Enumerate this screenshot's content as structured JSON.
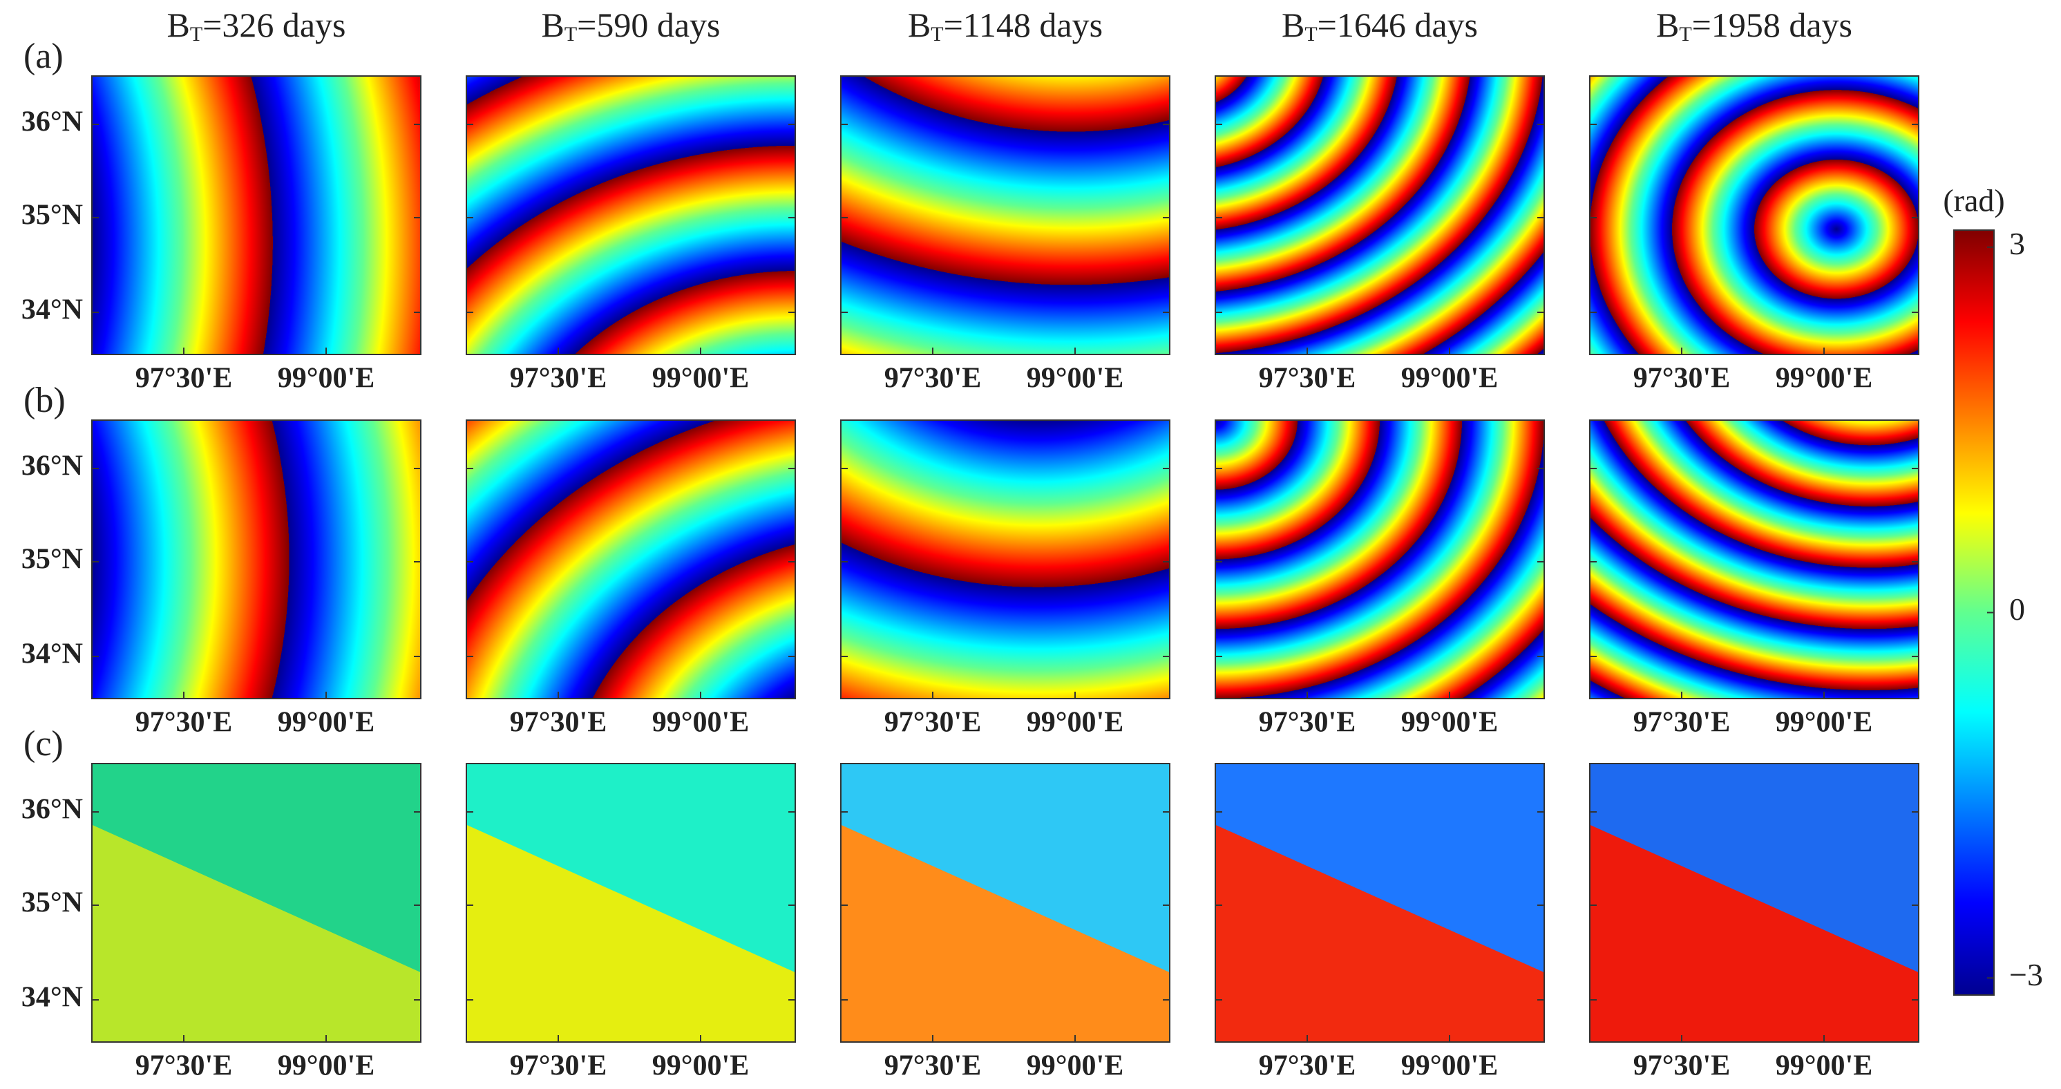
{
  "figure": {
    "columns": [
      {
        "symbol": "B",
        "subscript": "T",
        "text": "=326 days"
      },
      {
        "symbol": "B",
        "subscript": "T",
        "text": "=590 days"
      },
      {
        "symbol": "B",
        "subscript": "T",
        "text": "=1148 days"
      },
      {
        "symbol": "B",
        "subscript": "T",
        "text": "=1646 days"
      },
      {
        "symbol": "B",
        "subscript": "T",
        "text": "=1958 days"
      }
    ],
    "rows": [
      {
        "label": "(a)"
      },
      {
        "label": "(b)"
      },
      {
        "label": "(c)"
      }
    ],
    "y_tick_labels": [
      "36°N",
      "35°N",
      "34°N"
    ],
    "x_tick_labels": [
      "97°30'E",
      "99°00'E"
    ],
    "colorbar": {
      "label": "(rad)",
      "lim": [
        -3.14,
        3.14
      ],
      "ticks": [
        3,
        0,
        {
          "value": -3,
          "label": "−3"
        }
      ]
    }
  }
}
